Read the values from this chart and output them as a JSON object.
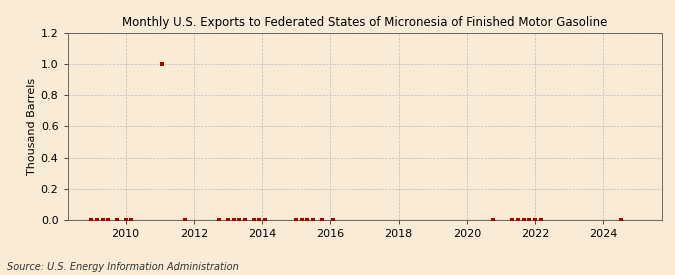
{
  "title": "Monthly U.S. Exports to Federated States of Micronesia of Finished Motor Gasoline",
  "ylabel": "Thousand Barrels",
  "source": "Source: U.S. Energy Information Administration",
  "background_color": "#faebd7",
  "marker_color": "#aa0000",
  "line_color": "#000000",
  "ylim": [
    0,
    1.2
  ],
  "yticks": [
    0.0,
    0.2,
    0.4,
    0.6,
    0.8,
    1.0,
    1.2
  ],
  "xlim_start": 2008.3,
  "xlim_end": 2025.7,
  "xticks": [
    2010,
    2012,
    2014,
    2016,
    2018,
    2020,
    2022,
    2024
  ],
  "title_fontsize": 8.5,
  "tick_fontsize": 8,
  "ylabel_fontsize": 8,
  "source_fontsize": 7,
  "data_points": [
    {
      "date": 2009.0,
      "value": 0.0
    },
    {
      "date": 2009.17,
      "value": 0.0
    },
    {
      "date": 2009.33,
      "value": 0.0
    },
    {
      "date": 2009.5,
      "value": 0.0
    },
    {
      "date": 2009.75,
      "value": 0.0
    },
    {
      "date": 2010.0,
      "value": 0.0
    },
    {
      "date": 2010.17,
      "value": 0.0
    },
    {
      "date": 2011.08,
      "value": 1.0
    },
    {
      "date": 2011.75,
      "value": 0.0
    },
    {
      "date": 2012.75,
      "value": 0.0
    },
    {
      "date": 2013.0,
      "value": 0.0
    },
    {
      "date": 2013.17,
      "value": 0.0
    },
    {
      "date": 2013.33,
      "value": 0.0
    },
    {
      "date": 2013.5,
      "value": 0.0
    },
    {
      "date": 2013.75,
      "value": 0.0
    },
    {
      "date": 2013.92,
      "value": 0.0
    },
    {
      "date": 2014.08,
      "value": 0.0
    },
    {
      "date": 2015.0,
      "value": 0.0
    },
    {
      "date": 2015.17,
      "value": 0.0
    },
    {
      "date": 2015.33,
      "value": 0.0
    },
    {
      "date": 2015.5,
      "value": 0.0
    },
    {
      "date": 2015.75,
      "value": 0.0
    },
    {
      "date": 2016.08,
      "value": 0.0
    },
    {
      "date": 2020.75,
      "value": 0.0
    },
    {
      "date": 2021.33,
      "value": 0.0
    },
    {
      "date": 2021.5,
      "value": 0.0
    },
    {
      "date": 2021.67,
      "value": 0.0
    },
    {
      "date": 2021.83,
      "value": 0.0
    },
    {
      "date": 2022.0,
      "value": 0.0
    },
    {
      "date": 2022.17,
      "value": 0.0
    },
    {
      "date": 2024.5,
      "value": 0.0
    }
  ]
}
